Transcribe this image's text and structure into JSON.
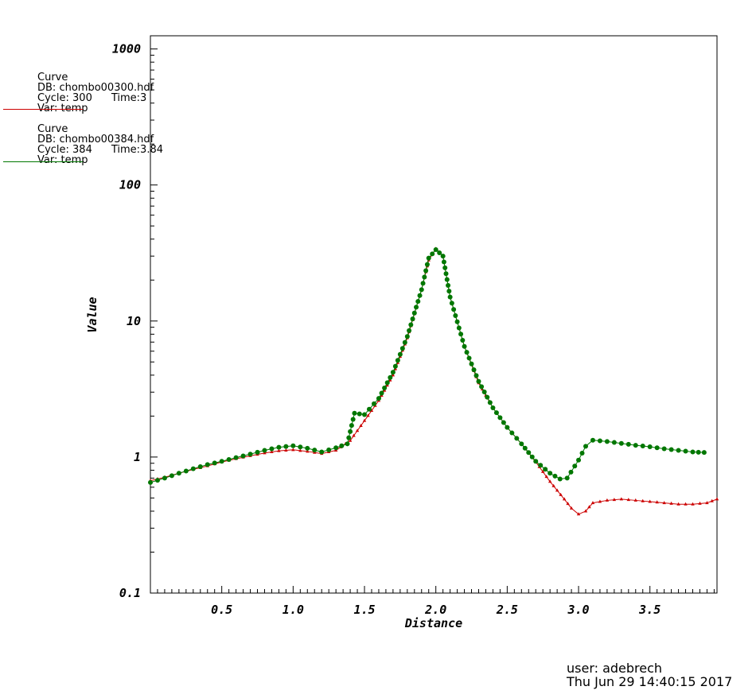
{
  "chart_data": {
    "type": "line",
    "xlabel": "Distance",
    "ylabel": "Value",
    "yscale": "log",
    "xlim": [
      0.0,
      3.97
    ],
    "ylim": [
      0.1,
      1250
    ],
    "x_ticks": [
      "0.5",
      "1.0",
      "1.5",
      "2.0",
      "2.5",
      "3.0",
      "3.5"
    ],
    "y_ticks": [
      "0.1",
      "1",
      "10",
      "100",
      "1000"
    ],
    "grid": false,
    "series": [
      {
        "color": "#cc0000",
        "marker": "triangle",
        "x": [
          0.0,
          0.1,
          0.2,
          0.3,
          0.4,
          0.5,
          0.6,
          0.7,
          0.8,
          0.9,
          1.0,
          1.1,
          1.2,
          1.3,
          1.4,
          1.5,
          1.6,
          1.7,
          1.8,
          1.9,
          1.95,
          2.0,
          2.05,
          2.1,
          2.2,
          2.3,
          2.4,
          2.5,
          2.6,
          2.7,
          2.8,
          2.9,
          2.95,
          3.0,
          3.05,
          3.1,
          3.2,
          3.3,
          3.4,
          3.5,
          3.6,
          3.7,
          3.8,
          3.9,
          3.97
        ],
        "y": [
          0.67,
          0.71,
          0.76,
          0.81,
          0.86,
          0.92,
          0.97,
          1.02,
          1.07,
          1.11,
          1.13,
          1.1,
          1.06,
          1.12,
          1.32,
          1.85,
          2.6,
          4.0,
          7.5,
          17.0,
          28.0,
          34.0,
          30.0,
          15.0,
          6.5,
          3.5,
          2.3,
          1.65,
          1.25,
          0.92,
          0.66,
          0.49,
          0.42,
          0.38,
          0.4,
          0.46,
          0.48,
          0.49,
          0.48,
          0.47,
          0.46,
          0.45,
          0.45,
          0.46,
          0.49
        ]
      },
      {
        "color": "#007700",
        "marker": "circle",
        "x": [
          0.0,
          0.1,
          0.2,
          0.3,
          0.4,
          0.5,
          0.6,
          0.7,
          0.8,
          0.9,
          1.0,
          1.1,
          1.2,
          1.3,
          1.38,
          1.43,
          1.5,
          1.6,
          1.7,
          1.8,
          1.9,
          1.95,
          2.0,
          2.05,
          2.1,
          2.2,
          2.3,
          2.4,
          2.5,
          2.6,
          2.7,
          2.8,
          2.87,
          2.92,
          3.0,
          3.05,
          3.1,
          3.2,
          3.3,
          3.4,
          3.5,
          3.6,
          3.7,
          3.8,
          3.88
        ],
        "y": [
          0.65,
          0.7,
          0.76,
          0.82,
          0.88,
          0.93,
          0.99,
          1.05,
          1.12,
          1.18,
          1.21,
          1.16,
          1.09,
          1.17,
          1.25,
          2.1,
          2.05,
          2.7,
          4.2,
          7.7,
          17.0,
          29.0,
          33.5,
          30.0,
          15.0,
          6.5,
          3.6,
          2.3,
          1.65,
          1.25,
          0.93,
          0.76,
          0.69,
          0.7,
          0.95,
          1.2,
          1.33,
          1.3,
          1.26,
          1.22,
          1.19,
          1.15,
          1.12,
          1.09,
          1.08
        ]
      }
    ]
  },
  "legend": [
    {
      "label": "Curve",
      "db": "DB: chombo00300.hdf",
      "cycle": "Cycle: 300",
      "time": "Time:3",
      "var": "Var: temp",
      "color": "#cc0000"
    },
    {
      "label": "Curve",
      "db": "DB: chombo00384.hdf",
      "cycle": "Cycle: 384",
      "time": "Time:3.84",
      "var": "Var: temp",
      "color": "#007700"
    }
  ],
  "footer": {
    "user": "user: adebrech",
    "timestamp": "Thu Jun 29 14:40:15 2017"
  }
}
